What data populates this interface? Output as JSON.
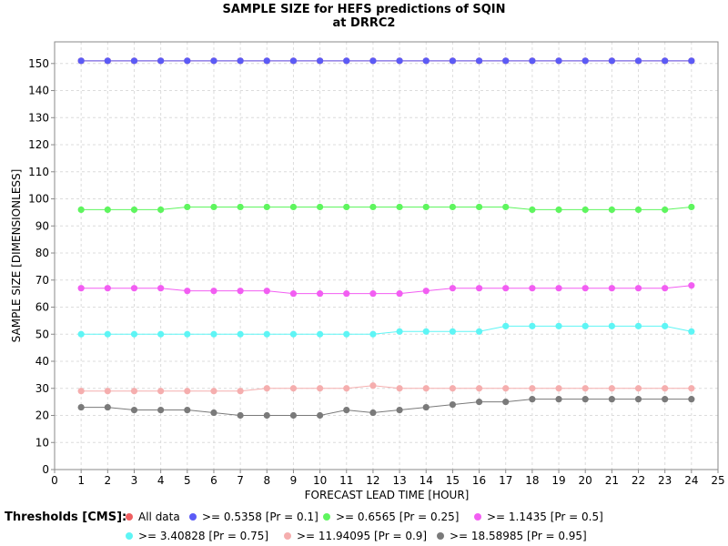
{
  "chart_data": {
    "type": "line",
    "title": [
      "SAMPLE SIZE for HEFS predictions of SQIN",
      "at DRRC2"
    ],
    "xlabel": "FORECAST LEAD TIME [HOUR]",
    "ylabel": "SAMPLE SIZE [DIMENSIONLESS]",
    "xlim": [
      0,
      25
    ],
    "ylim": [
      0,
      158
    ],
    "xticks": [
      0,
      1,
      2,
      3,
      4,
      5,
      6,
      7,
      8,
      9,
      10,
      11,
      12,
      13,
      14,
      15,
      16,
      17,
      18,
      19,
      20,
      21,
      22,
      23,
      24,
      25
    ],
    "yticks": [
      0,
      10,
      20,
      30,
      40,
      50,
      60,
      70,
      80,
      90,
      100,
      110,
      120,
      130,
      140,
      150
    ],
    "grid": true,
    "legend_title": "Thresholds [CMS]:",
    "legend_position": "bottom",
    "x": [
      1,
      2,
      3,
      4,
      5,
      6,
      7,
      8,
      9,
      10,
      11,
      12,
      13,
      14,
      15,
      16,
      17,
      18,
      19,
      20,
      21,
      22,
      23,
      24
    ],
    "series": [
      {
        "name": "All data",
        "color": "#ef5e60",
        "values": [
          151,
          151,
          151,
          151,
          151,
          151,
          151,
          151,
          151,
          151,
          151,
          151,
          151,
          151,
          151,
          151,
          151,
          151,
          151,
          151,
          151,
          151,
          151,
          151
        ]
      },
      {
        "name": ">= 0.5358 [Pr = 0.1]",
        "color": "#5b5bf6",
        "values": [
          151,
          151,
          151,
          151,
          151,
          151,
          151,
          151,
          151,
          151,
          151,
          151,
          151,
          151,
          151,
          151,
          151,
          151,
          151,
          151,
          151,
          151,
          151,
          151
        ]
      },
      {
        "name": ">= 0.6565 [Pr = 0.25]",
        "color": "#5ef55e",
        "values": [
          96,
          96,
          96,
          96,
          97,
          97,
          97,
          97,
          97,
          97,
          97,
          97,
          97,
          97,
          97,
          97,
          97,
          96,
          96,
          96,
          96,
          96,
          96,
          97
        ]
      },
      {
        "name": ">= 1.1435 [Pr = 0.5]",
        "color": "#f25ef2",
        "values": [
          67,
          67,
          67,
          67,
          66,
          66,
          66,
          66,
          65,
          65,
          65,
          65,
          65,
          66,
          67,
          67,
          67,
          67,
          67,
          67,
          67,
          67,
          67,
          68
        ]
      },
      {
        "name": ">= 3.40828 [Pr = 0.75]",
        "color": "#5ef5f5",
        "values": [
          50,
          50,
          50,
          50,
          50,
          50,
          50,
          50,
          50,
          50,
          50,
          50,
          51,
          51,
          51,
          51,
          53,
          53,
          53,
          53,
          53,
          53,
          53,
          51
        ]
      },
      {
        "name": ">= 11.94095 [Pr = 0.9]",
        "color": "#f5aeae",
        "values": [
          29,
          29,
          29,
          29,
          29,
          29,
          29,
          30,
          30,
          30,
          30,
          31,
          30,
          30,
          30,
          30,
          30,
          30,
          30,
          30,
          30,
          30,
          30,
          30
        ]
      },
      {
        "name": ">= 18.58985 [Pr = 0.95]",
        "color": "#7a7a7a",
        "values": [
          23,
          23,
          22,
          22,
          22,
          21,
          20,
          20,
          20,
          20,
          22,
          21,
          22,
          23,
          24,
          25,
          25,
          26,
          26,
          26,
          26,
          26,
          26,
          26
        ]
      }
    ]
  }
}
